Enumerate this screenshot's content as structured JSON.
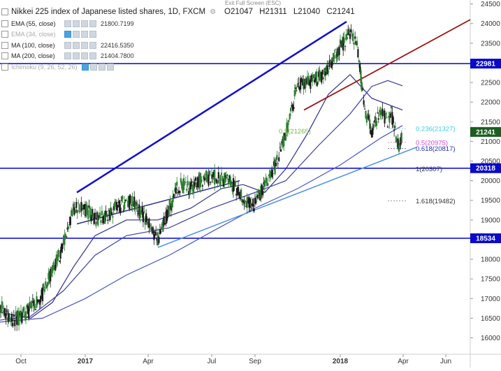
{
  "header": {
    "exit_fullscreen": "Exit Full Screen (ESC)",
    "title": "Nikkei 225 index of Japanese listed shares, 1D, FXCM",
    "ohlc": {
      "open": "O21047",
      "high": "H21311",
      "low": "L21040",
      "close": "C21241"
    }
  },
  "indicators": [
    {
      "name": "EMA (55, close)",
      "value": "21800.7199",
      "dim": false
    },
    {
      "name": "EMA (34, close)",
      "value": "",
      "dim": true
    },
    {
      "name": "MA (100, close)",
      "value": "22416.5350",
      "dim": false
    },
    {
      "name": "MA (200, close)",
      "value": "21404.7800",
      "dim": false
    },
    {
      "name": "Ichimoku (9, 26, 52, 26)",
      "value": "",
      "dim": true
    }
  ],
  "colors": {
    "up": "#2e7d32",
    "down": "#1a1a1a",
    "hline": "#0000dd",
    "trend_blue": "#1010cc",
    "trend_red": "#a01010",
    "ema55": "#2c2f8a",
    "ma100": "#3a3fa0",
    "ma200": "#4a55c0",
    "support_trend": "#4a90e2",
    "last_price_bg": "#1b5e20",
    "level_bg": "#0a0acc"
  },
  "chart_data": {
    "type": "line",
    "title": "Nikkei 225 index of Japanese listed shares, 1D, FXCM",
    "ylim": [
      15600,
      24600
    ],
    "y_ticks": [
      16000,
      16500,
      17000,
      17500,
      18000,
      18500,
      19000,
      19500,
      20000,
      20500,
      21000,
      21500,
      22000,
      22500,
      23000,
      23500,
      24000,
      24500
    ],
    "x_ticks": [
      {
        "label": "Oct",
        "date": "2016-10-01",
        "bold": false
      },
      {
        "label": "2017",
        "date": "2017-01-01",
        "bold": true
      },
      {
        "label": "Apr",
        "date": "2017-04-01",
        "bold": false
      },
      {
        "label": "Jul",
        "date": "2017-07-01",
        "bold": false
      },
      {
        "label": "Sep",
        "date": "2017-09-01",
        "bold": false
      },
      {
        "label": "2018",
        "date": "2018-01-01",
        "bold": true
      },
      {
        "label": "Apr",
        "date": "2018-04-01",
        "bold": false
      },
      {
        "label": "Jun",
        "date": "2018-06-01",
        "bold": false
      }
    ],
    "xlim": [
      "2016-09-01",
      "2018-07-06"
    ],
    "close_path": [
      [
        "2016-09-01",
        16850
      ],
      [
        "2016-09-15",
        16500
      ],
      [
        "2016-10-01",
        16500
      ],
      [
        "2016-10-15",
        16750
      ],
      [
        "2016-11-01",
        17100
      ],
      [
        "2016-11-15",
        17700
      ],
      [
        "2016-12-01",
        18400
      ],
      [
        "2016-12-15",
        19300
      ],
      [
        "2017-01-01",
        19300
      ],
      [
        "2017-01-15",
        19000
      ],
      [
        "2017-02-01",
        19100
      ],
      [
        "2017-02-15",
        19300
      ],
      [
        "2017-03-01",
        19500
      ],
      [
        "2017-03-15",
        19400
      ],
      [
        "2017-04-01",
        18900
      ],
      [
        "2017-04-15",
        18500
      ],
      [
        "2017-05-01",
        19300
      ],
      [
        "2017-05-15",
        19900
      ],
      [
        "2017-06-01",
        19800
      ],
      [
        "2017-06-15",
        20000
      ],
      [
        "2017-07-01",
        20100
      ],
      [
        "2017-07-15",
        20050
      ],
      [
        "2017-08-01",
        19900
      ],
      [
        "2017-08-15",
        19500
      ],
      [
        "2017-09-01",
        19400
      ],
      [
        "2017-09-15",
        19900
      ],
      [
        "2017-10-01",
        20400
      ],
      [
        "2017-10-15",
        21200
      ],
      [
        "2017-11-01",
        22400
      ],
      [
        "2017-11-15",
        22500
      ],
      [
        "2017-12-01",
        22600
      ],
      [
        "2017-12-15",
        22900
      ],
      [
        "2018-01-01",
        23400
      ],
      [
        "2018-01-15",
        23800
      ],
      [
        "2018-01-25",
        23500
      ],
      [
        "2018-02-05",
        21800
      ],
      [
        "2018-02-15",
        21300
      ],
      [
        "2018-03-01",
        21800
      ],
      [
        "2018-03-10",
        21500
      ],
      [
        "2018-03-15",
        21700
      ],
      [
        "2018-03-26",
        20800
      ],
      [
        "2018-03-31",
        21241
      ]
    ],
    "series": [
      {
        "label": "EMA (55, close)",
        "color": "#2c2f8a",
        "points": [
          [
            "2016-09-01",
            16650
          ],
          [
            "2016-10-15",
            16500
          ],
          [
            "2016-11-15",
            16900
          ],
          [
            "2016-12-15",
            17800
          ],
          [
            "2017-01-15",
            18600
          ],
          [
            "2017-03-01",
            19000
          ],
          [
            "2017-04-15",
            19000
          ],
          [
            "2017-06-01",
            19300
          ],
          [
            "2017-07-15",
            19800
          ],
          [
            "2017-08-15",
            19900
          ],
          [
            "2017-09-15",
            19700
          ],
          [
            "2017-10-15",
            20300
          ],
          [
            "2017-11-15",
            21200
          ],
          [
            "2017-12-15",
            22200
          ],
          [
            "2018-01-15",
            22700
          ],
          [
            "2018-02-15",
            22100
          ],
          [
            "2018-03-31",
            21800
          ]
        ]
      },
      {
        "label": "MA (100, close)",
        "color": "#3a3fa0",
        "points": [
          [
            "2016-09-01",
            16450
          ],
          [
            "2016-10-15",
            16550
          ],
          [
            "2016-12-01",
            17200
          ],
          [
            "2017-01-15",
            18100
          ],
          [
            "2017-03-01",
            18600
          ],
          [
            "2017-05-01",
            18800
          ],
          [
            "2017-07-01",
            19300
          ],
          [
            "2017-09-01",
            19700
          ],
          [
            "2017-10-15",
            20000
          ],
          [
            "2017-12-01",
            20900
          ],
          [
            "2018-01-15",
            21700
          ],
          [
            "2018-02-15",
            22400
          ],
          [
            "2018-03-10",
            22550
          ],
          [
            "2018-03-31",
            22416
          ]
        ]
      },
      {
        "label": "MA (200, close)",
        "color": "#4a55c0",
        "points": [
          [
            "2016-09-01",
            16400
          ],
          [
            "2016-11-01",
            16500
          ],
          [
            "2017-01-01",
            17000
          ],
          [
            "2017-03-01",
            17600
          ],
          [
            "2017-05-01",
            18100
          ],
          [
            "2017-07-01",
            18700
          ],
          [
            "2017-09-01",
            19300
          ],
          [
            "2017-11-01",
            19800
          ],
          [
            "2018-01-01",
            20400
          ],
          [
            "2018-03-01",
            21100
          ],
          [
            "2018-03-31",
            21404
          ]
        ]
      }
    ],
    "horizontal_levels": [
      {
        "value": 22981,
        "label": "22981"
      },
      {
        "value": 20318,
        "label": "20318"
      },
      {
        "value": 18534,
        "label": "18534"
      }
    ],
    "trendlines": [
      {
        "name": "upper-channel",
        "color": "#1010cc",
        "from": [
          "2016-12-20",
          19700
        ],
        "to": [
          "2018-01-10",
          24050
        ]
      },
      {
        "name": "lower-support",
        "color": "#4a90e2",
        "from": [
          "2017-04-15",
          18300
        ],
        "to": [
          "2018-04-20",
          20850
        ]
      },
      {
        "name": "red-trend",
        "color": "#a01010",
        "from": [
          "2017-11-10",
          21800
        ],
        "to": [
          "2018-07-06",
          24100
        ]
      },
      {
        "name": "mid-support",
        "color": "#2c2f8a",
        "from": [
          "2016-12-20",
          18900
        ],
        "to": [
          "2017-08-10",
          20000
        ]
      }
    ],
    "fibonacci": [
      {
        "label": "0.5(21265)",
        "value": 21265,
        "color": "#7ab648",
        "at": "2017-10-15"
      },
      {
        "label": "0.236(21327)",
        "value": 21327,
        "color": "#3ecfe0",
        "at": "2018-04-01"
      },
      {
        "label": "0.5(20975)",
        "value": 20975,
        "color": "#d24ad8",
        "at": "2018-04-01"
      },
      {
        "label": "0.618(20817)",
        "value": 20817,
        "color": "#2233aa",
        "at": "2018-04-01"
      },
      {
        "label": "1(20307)",
        "value": 20307,
        "color": "#333333",
        "at": "2018-04-01"
      },
      {
        "label": "1.618(19482)",
        "value": 19482,
        "color": "#333333",
        "at": "2018-04-01"
      }
    ],
    "last_price": {
      "value": 21241,
      "label": "21241"
    }
  }
}
